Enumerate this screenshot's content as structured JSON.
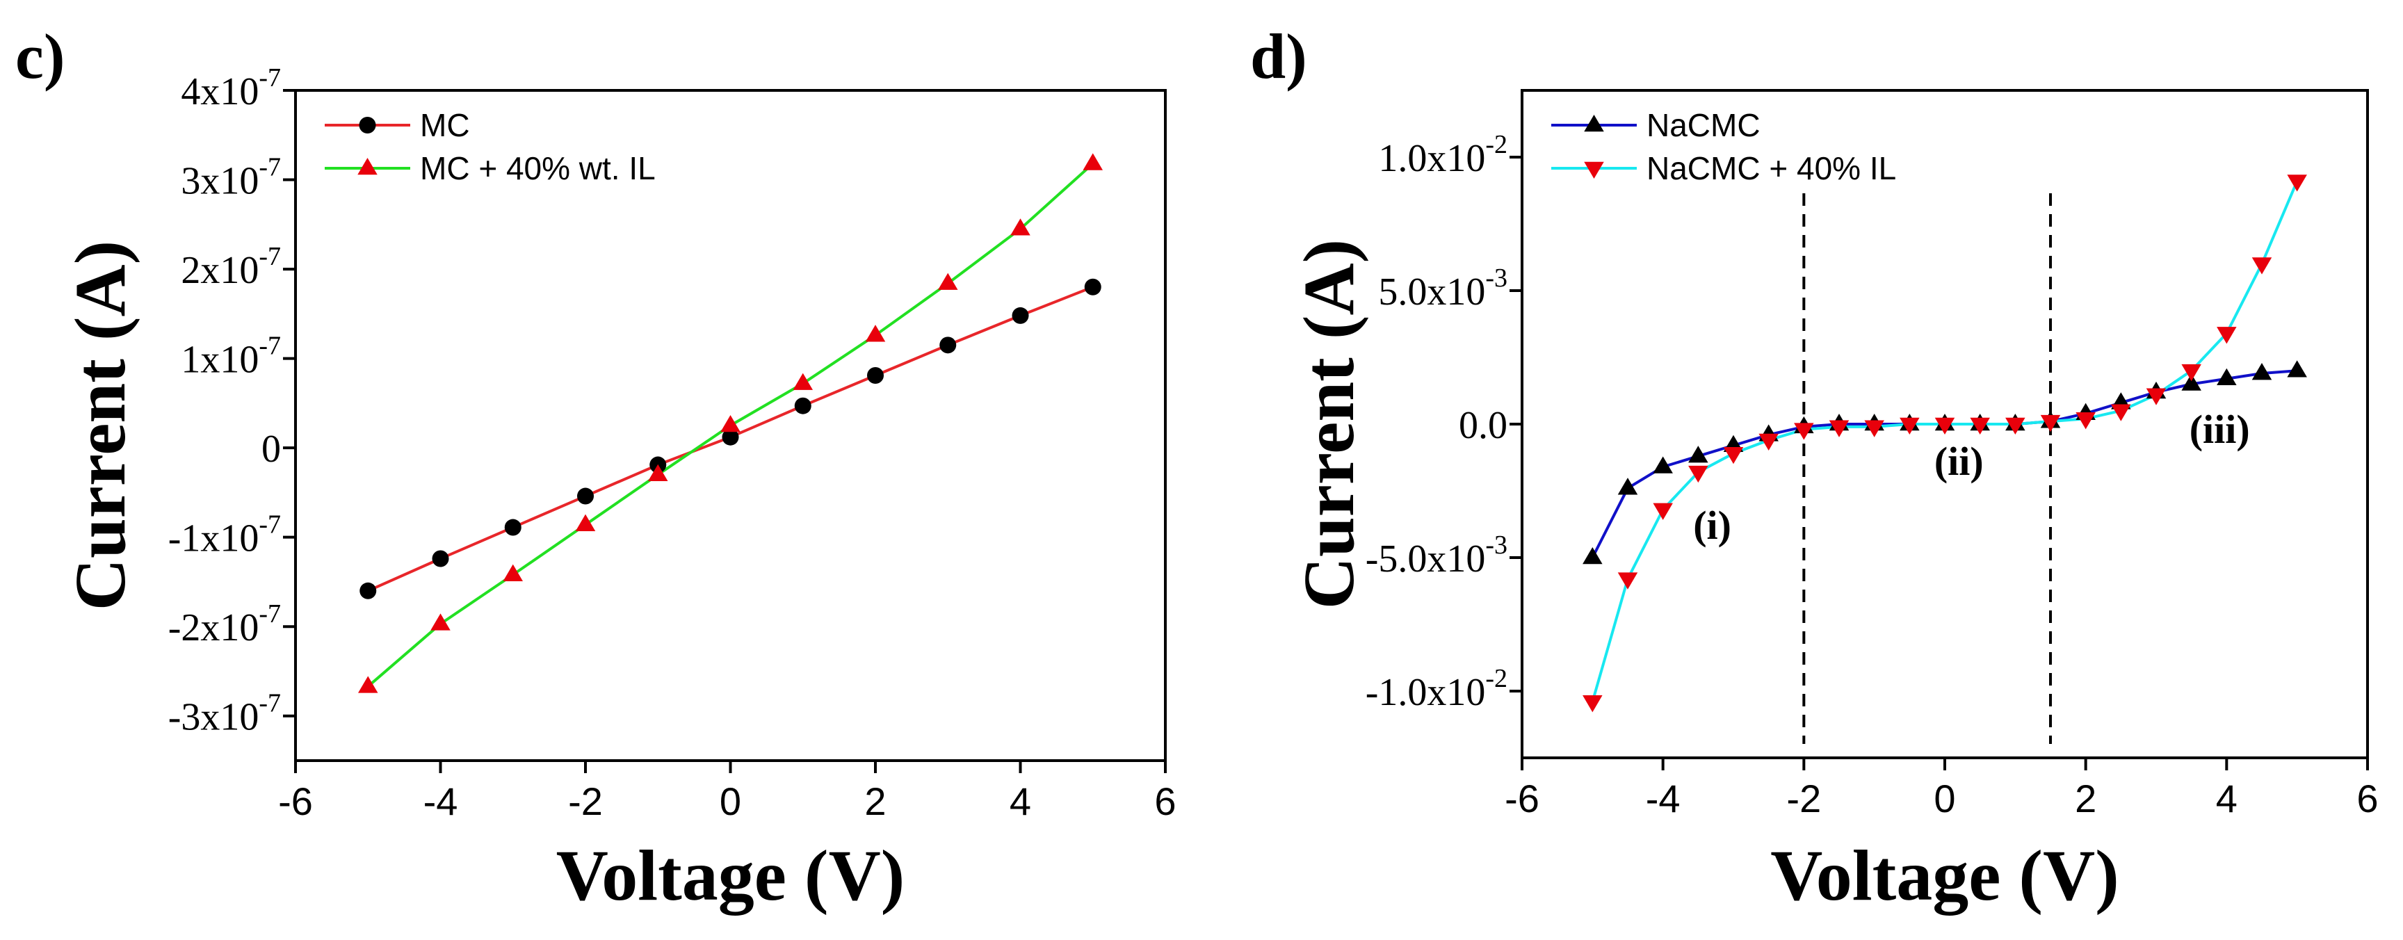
{
  "panels": [
    {
      "panel_label": "c)",
      "ytick_labels": [
        "-3x10",
        "-2x10",
        "-1x10",
        "0",
        "1x10",
        "2x10",
        "3x10",
        "4x10"
      ],
      "ytick_values": [
        -3e-07,
        -2e-07,
        -1e-07,
        0,
        1e-07,
        2e-07,
        3e-07,
        4e-07
      ],
      "ytick_exponents": [
        "-7",
        "-7",
        "-7",
        "",
        "-7",
        "-7",
        "-7",
        "-7"
      ],
      "xtick_labels": [
        "-6",
        "-4",
        "-2",
        "0",
        "2",
        "4",
        "6"
      ],
      "xtick_values": [
        -6,
        -4,
        -2,
        0,
        2,
        4,
        6
      ]
    },
    {
      "panel_label": "d)",
      "ytick_labels": [
        "-1.0x10",
        "-5.0x10",
        "0.0",
        "5.0x10",
        "1.0x10"
      ],
      "ytick_values": [
        -0.01,
        -0.005,
        0,
        0.005,
        0.01
      ],
      "ytick_exponents": [
        "-2",
        "-3",
        "",
        "-3",
        "-2"
      ],
      "xtick_labels": [
        "-6",
        "-4",
        "-2",
        "0",
        "2",
        "4",
        "6"
      ],
      "xtick_values": [
        -6,
        -4,
        -2,
        0,
        2,
        4,
        6
      ],
      "annotations": [
        {
          "text": "(i)",
          "x": -3.3,
          "y": -0.0043
        },
        {
          "text": "(ii)",
          "x": 0.2,
          "y": -0.0019
        },
        {
          "text": "(iii)",
          "x": 3.9,
          "y": -0.0007
        }
      ],
      "vlines": [
        -2,
        1.5
      ]
    }
  ],
  "chart_data": [
    {
      "type": "line",
      "title": "",
      "xlabel": "Voltage (V)",
      "ylabel": "Current (A)",
      "xlim": [
        -6,
        6
      ],
      "ylim": [
        -3.5e-07,
        4e-07
      ],
      "legend_position": "top-left",
      "series": [
        {
          "name": "MC",
          "color": "#e8262a",
          "marker": "circle",
          "marker_color": "#000000",
          "x": [
            -5,
            -4,
            -3,
            -2,
            -1,
            0,
            1,
            2,
            3,
            4,
            5
          ],
          "y": [
            -1.6e-07,
            -1.24e-07,
            -8.9e-08,
            -5.4e-08,
            -1.9e-08,
            1.2e-08,
            4.7e-08,
            8.1e-08,
            1.15e-07,
            1.48e-07,
            1.8e-07
          ]
        },
        {
          "name": "MC + 40% wt. IL",
          "color": "#22e022",
          "marker": "triangle-up",
          "marker_color": "#e8000b",
          "x": [
            -5,
            -4,
            -3,
            -2,
            -1,
            0,
            1,
            2,
            3,
            4,
            5
          ],
          "y": [
            -2.67e-07,
            -1.97e-07,
            -1.42e-07,
            -8.6e-08,
            -3e-08,
            2.5e-08,
            7.2e-08,
            1.26e-07,
            1.84e-07,
            2.45e-07,
            3.18e-07
          ]
        }
      ]
    },
    {
      "type": "line",
      "title": "",
      "xlabel": "Voltage (V)",
      "ylabel": "Current (A)",
      "xlim": [
        -6,
        6
      ],
      "ylim": [
        -0.0125,
        0.0125
      ],
      "legend_position": "top-left",
      "series": [
        {
          "name": "NaCMC",
          "color": "#1010c8",
          "marker": "triangle-up",
          "marker_color": "#000000",
          "x": [
            -5,
            -4.5,
            -4,
            -3.5,
            -3,
            -2.5,
            -2,
            -1.5,
            -1,
            -0.5,
            0,
            0.5,
            1,
            1.5,
            2,
            2.5,
            3,
            3.5,
            4,
            4.5,
            5
          ],
          "y": [
            -0.005,
            -0.0024,
            -0.0016,
            -0.0012,
            -0.0008,
            -0.0004,
            -0.0001,
            0,
            0,
            0,
            0,
            0,
            0,
            0.0001,
            0.0004,
            0.0008,
            0.0012,
            0.0015,
            0.0017,
            0.0019,
            0.002
          ]
        },
        {
          "name": "NaCMC + 40% IL",
          "color": "#18e8f0",
          "marker": "triangle-down",
          "marker_color": "#e8000b",
          "x": [
            -5,
            -4.5,
            -4,
            -3.5,
            -3,
            -2.5,
            -2,
            -1.5,
            -1,
            -0.5,
            0,
            0.5,
            1,
            1.5,
            2,
            2.5,
            3,
            3.5,
            4,
            4.5,
            5
          ],
          "y": [
            -0.0104,
            -0.0058,
            -0.0032,
            -0.0018,
            -0.0011,
            -0.0006,
            -0.0002,
            -0.0001,
            -0.0001,
            0,
            0,
            0,
            0,
            0.0001,
            0.0002,
            0.0005,
            0.0011,
            0.002,
            0.0034,
            0.006,
            0.0091
          ]
        }
      ]
    }
  ]
}
